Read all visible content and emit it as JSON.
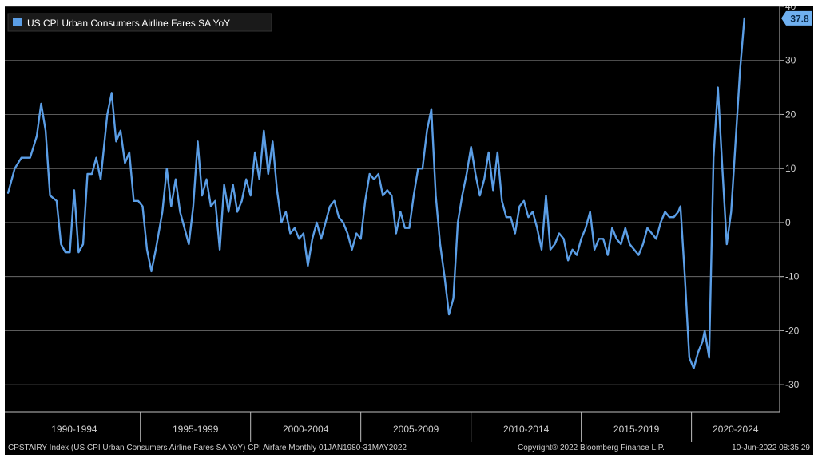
{
  "footer": {
    "source": "CPSTAIRY Index (US CPI Urban Consumers Airline Fares SA YoY) CPI Airfare  Monthly 01JAN1980-31MAY2022",
    "copyright": "Copyright® 2022 Bloomberg Finance L.P.",
    "timestamp": "10-Jun-2022 08:35:29"
  },
  "colors": {
    "line": "#5b9ee6",
    "background": "#000000",
    "grid": "#7a7a7a",
    "last_label_bg": "#6fb0f0"
  },
  "chart_data": {
    "type": "line",
    "series": [
      {
        "name": "US CPI Urban Consumers Airline Fares SA YoY",
        "points": [
          [
            1989.0,
            5.5
          ],
          [
            1989.3,
            10
          ],
          [
            1989.6,
            12
          ],
          [
            1990.0,
            12
          ],
          [
            1990.3,
            16
          ],
          [
            1990.5,
            22
          ],
          [
            1990.7,
            17
          ],
          [
            1990.9,
            5
          ],
          [
            1991.2,
            4
          ],
          [
            1991.4,
            -4
          ],
          [
            1991.6,
            -5.5
          ],
          [
            1991.8,
            -5.5
          ],
          [
            1992.0,
            6
          ],
          [
            1992.2,
            -5.5
          ],
          [
            1992.4,
            -4
          ],
          [
            1992.6,
            9
          ],
          [
            1992.8,
            9
          ],
          [
            1993.0,
            12
          ],
          [
            1993.2,
            8
          ],
          [
            1993.5,
            20
          ],
          [
            1993.7,
            24
          ],
          [
            1993.9,
            15
          ],
          [
            1994.1,
            17
          ],
          [
            1994.3,
            11
          ],
          [
            1994.5,
            13
          ],
          [
            1994.7,
            4
          ],
          [
            1994.9,
            4
          ],
          [
            1995.1,
            3
          ],
          [
            1995.3,
            -5
          ],
          [
            1995.5,
            -9
          ],
          [
            1995.7,
            -5
          ],
          [
            1996.0,
            2
          ],
          [
            1996.2,
            10
          ],
          [
            1996.4,
            3
          ],
          [
            1996.6,
            8
          ],
          [
            1996.8,
            2
          ],
          [
            1997.0,
            -1
          ],
          [
            1997.2,
            -4
          ],
          [
            1997.4,
            3
          ],
          [
            1997.6,
            15
          ],
          [
            1997.8,
            5
          ],
          [
            1998.0,
            8
          ],
          [
            1998.2,
            3
          ],
          [
            1998.4,
            4
          ],
          [
            1998.6,
            -5
          ],
          [
            1998.8,
            7
          ],
          [
            1999.0,
            2
          ],
          [
            1999.2,
            7
          ],
          [
            1999.4,
            2
          ],
          [
            1999.6,
            4
          ],
          [
            1999.8,
            8
          ],
          [
            2000.0,
            5
          ],
          [
            2000.2,
            13
          ],
          [
            2000.4,
            8
          ],
          [
            2000.6,
            17
          ],
          [
            2000.8,
            9
          ],
          [
            2001.0,
            15
          ],
          [
            2001.2,
            6
          ],
          [
            2001.4,
            0
          ],
          [
            2001.6,
            2
          ],
          [
            2001.8,
            -2
          ],
          [
            2002.0,
            -1
          ],
          [
            2002.2,
            -3
          ],
          [
            2002.4,
            -2
          ],
          [
            2002.6,
            -8
          ],
          [
            2002.8,
            -3
          ],
          [
            2003.0,
            0
          ],
          [
            2003.2,
            -3
          ],
          [
            2003.4,
            0
          ],
          [
            2003.6,
            3
          ],
          [
            2003.8,
            4
          ],
          [
            2004.0,
            1
          ],
          [
            2004.2,
            0
          ],
          [
            2004.4,
            -2
          ],
          [
            2004.6,
            -5
          ],
          [
            2004.8,
            -2
          ],
          [
            2005.0,
            -3
          ],
          [
            2005.2,
            4
          ],
          [
            2005.4,
            9
          ],
          [
            2005.6,
            8
          ],
          [
            2005.8,
            9
          ],
          [
            2006.0,
            5
          ],
          [
            2006.2,
            6
          ],
          [
            2006.4,
            5
          ],
          [
            2006.6,
            -2
          ],
          [
            2006.8,
            2
          ],
          [
            2007.0,
            -1
          ],
          [
            2007.2,
            -1
          ],
          [
            2007.4,
            5
          ],
          [
            2007.6,
            10
          ],
          [
            2007.8,
            10
          ],
          [
            2008.0,
            17
          ],
          [
            2008.2,
            21
          ],
          [
            2008.4,
            5
          ],
          [
            2008.6,
            -4
          ],
          [
            2008.8,
            -10
          ],
          [
            2009.0,
            -17
          ],
          [
            2009.2,
            -14
          ],
          [
            2009.4,
            0
          ],
          [
            2009.6,
            5
          ],
          [
            2009.8,
            9
          ],
          [
            2010.0,
            14
          ],
          [
            2010.2,
            9
          ],
          [
            2010.4,
            5
          ],
          [
            2010.6,
            8
          ],
          [
            2010.8,
            13
          ],
          [
            2011.0,
            6
          ],
          [
            2011.2,
            13
          ],
          [
            2011.4,
            4
          ],
          [
            2011.6,
            1
          ],
          [
            2011.8,
            1
          ],
          [
            2012.0,
            -2
          ],
          [
            2012.2,
            3
          ],
          [
            2012.4,
            4
          ],
          [
            2012.6,
            1
          ],
          [
            2012.8,
            2
          ],
          [
            2013.0,
            -1
          ],
          [
            2013.2,
            -5
          ],
          [
            2013.4,
            5
          ],
          [
            2013.6,
            -5
          ],
          [
            2013.8,
            -4
          ],
          [
            2014.0,
            -2
          ],
          [
            2014.2,
            -3
          ],
          [
            2014.4,
            -7
          ],
          [
            2014.6,
            -5
          ],
          [
            2014.8,
            -6
          ],
          [
            2015.0,
            -3
          ],
          [
            2015.2,
            -1
          ],
          [
            2015.4,
            2
          ],
          [
            2015.6,
            -5
          ],
          [
            2015.8,
            -3
          ],
          [
            2016.0,
            -3
          ],
          [
            2016.2,
            -6
          ],
          [
            2016.4,
            -1
          ],
          [
            2016.6,
            -3
          ],
          [
            2016.8,
            -4
          ],
          [
            2017.0,
            -1
          ],
          [
            2017.2,
            -4
          ],
          [
            2017.4,
            -5
          ],
          [
            2017.6,
            -6
          ],
          [
            2017.8,
            -4
          ],
          [
            2018.0,
            -1
          ],
          [
            2018.2,
            -2
          ],
          [
            2018.4,
            -3
          ],
          [
            2018.6,
            0
          ],
          [
            2018.8,
            2
          ],
          [
            2019.0,
            1
          ],
          [
            2019.2,
            1
          ],
          [
            2019.4,
            2
          ],
          [
            2019.5,
            3
          ],
          [
            2019.7,
            -10
          ],
          [
            2019.9,
            -25
          ],
          [
            2020.1,
            -27
          ],
          [
            2020.3,
            -24
          ],
          [
            2020.5,
            -22
          ],
          [
            2020.6,
            -20
          ],
          [
            2020.8,
            -25
          ],
          [
            2021.0,
            12
          ],
          [
            2021.2,
            25
          ],
          [
            2021.4,
            10
          ],
          [
            2021.6,
            -4
          ],
          [
            2021.8,
            2
          ],
          [
            2022.0,
            15
          ],
          [
            2022.2,
            28
          ],
          [
            2022.4,
            37.8
          ]
        ]
      }
    ],
    "ylim": [
      -35,
      40
    ],
    "yticks": [
      -30,
      -20,
      -10,
      0,
      10,
      20,
      30,
      40
    ],
    "y_axis_side": "right",
    "period_labels": [
      "1990-1994",
      "1995-1999",
      "2000-2004",
      "2005-2009",
      "2010-2014",
      "2015-2019",
      "2020-2024"
    ],
    "period_boundaries": [
      1995,
      2000,
      2005,
      2010,
      2015,
      2020
    ],
    "last_value_label": "37.8",
    "grid": true,
    "legend_position": "top-left"
  }
}
